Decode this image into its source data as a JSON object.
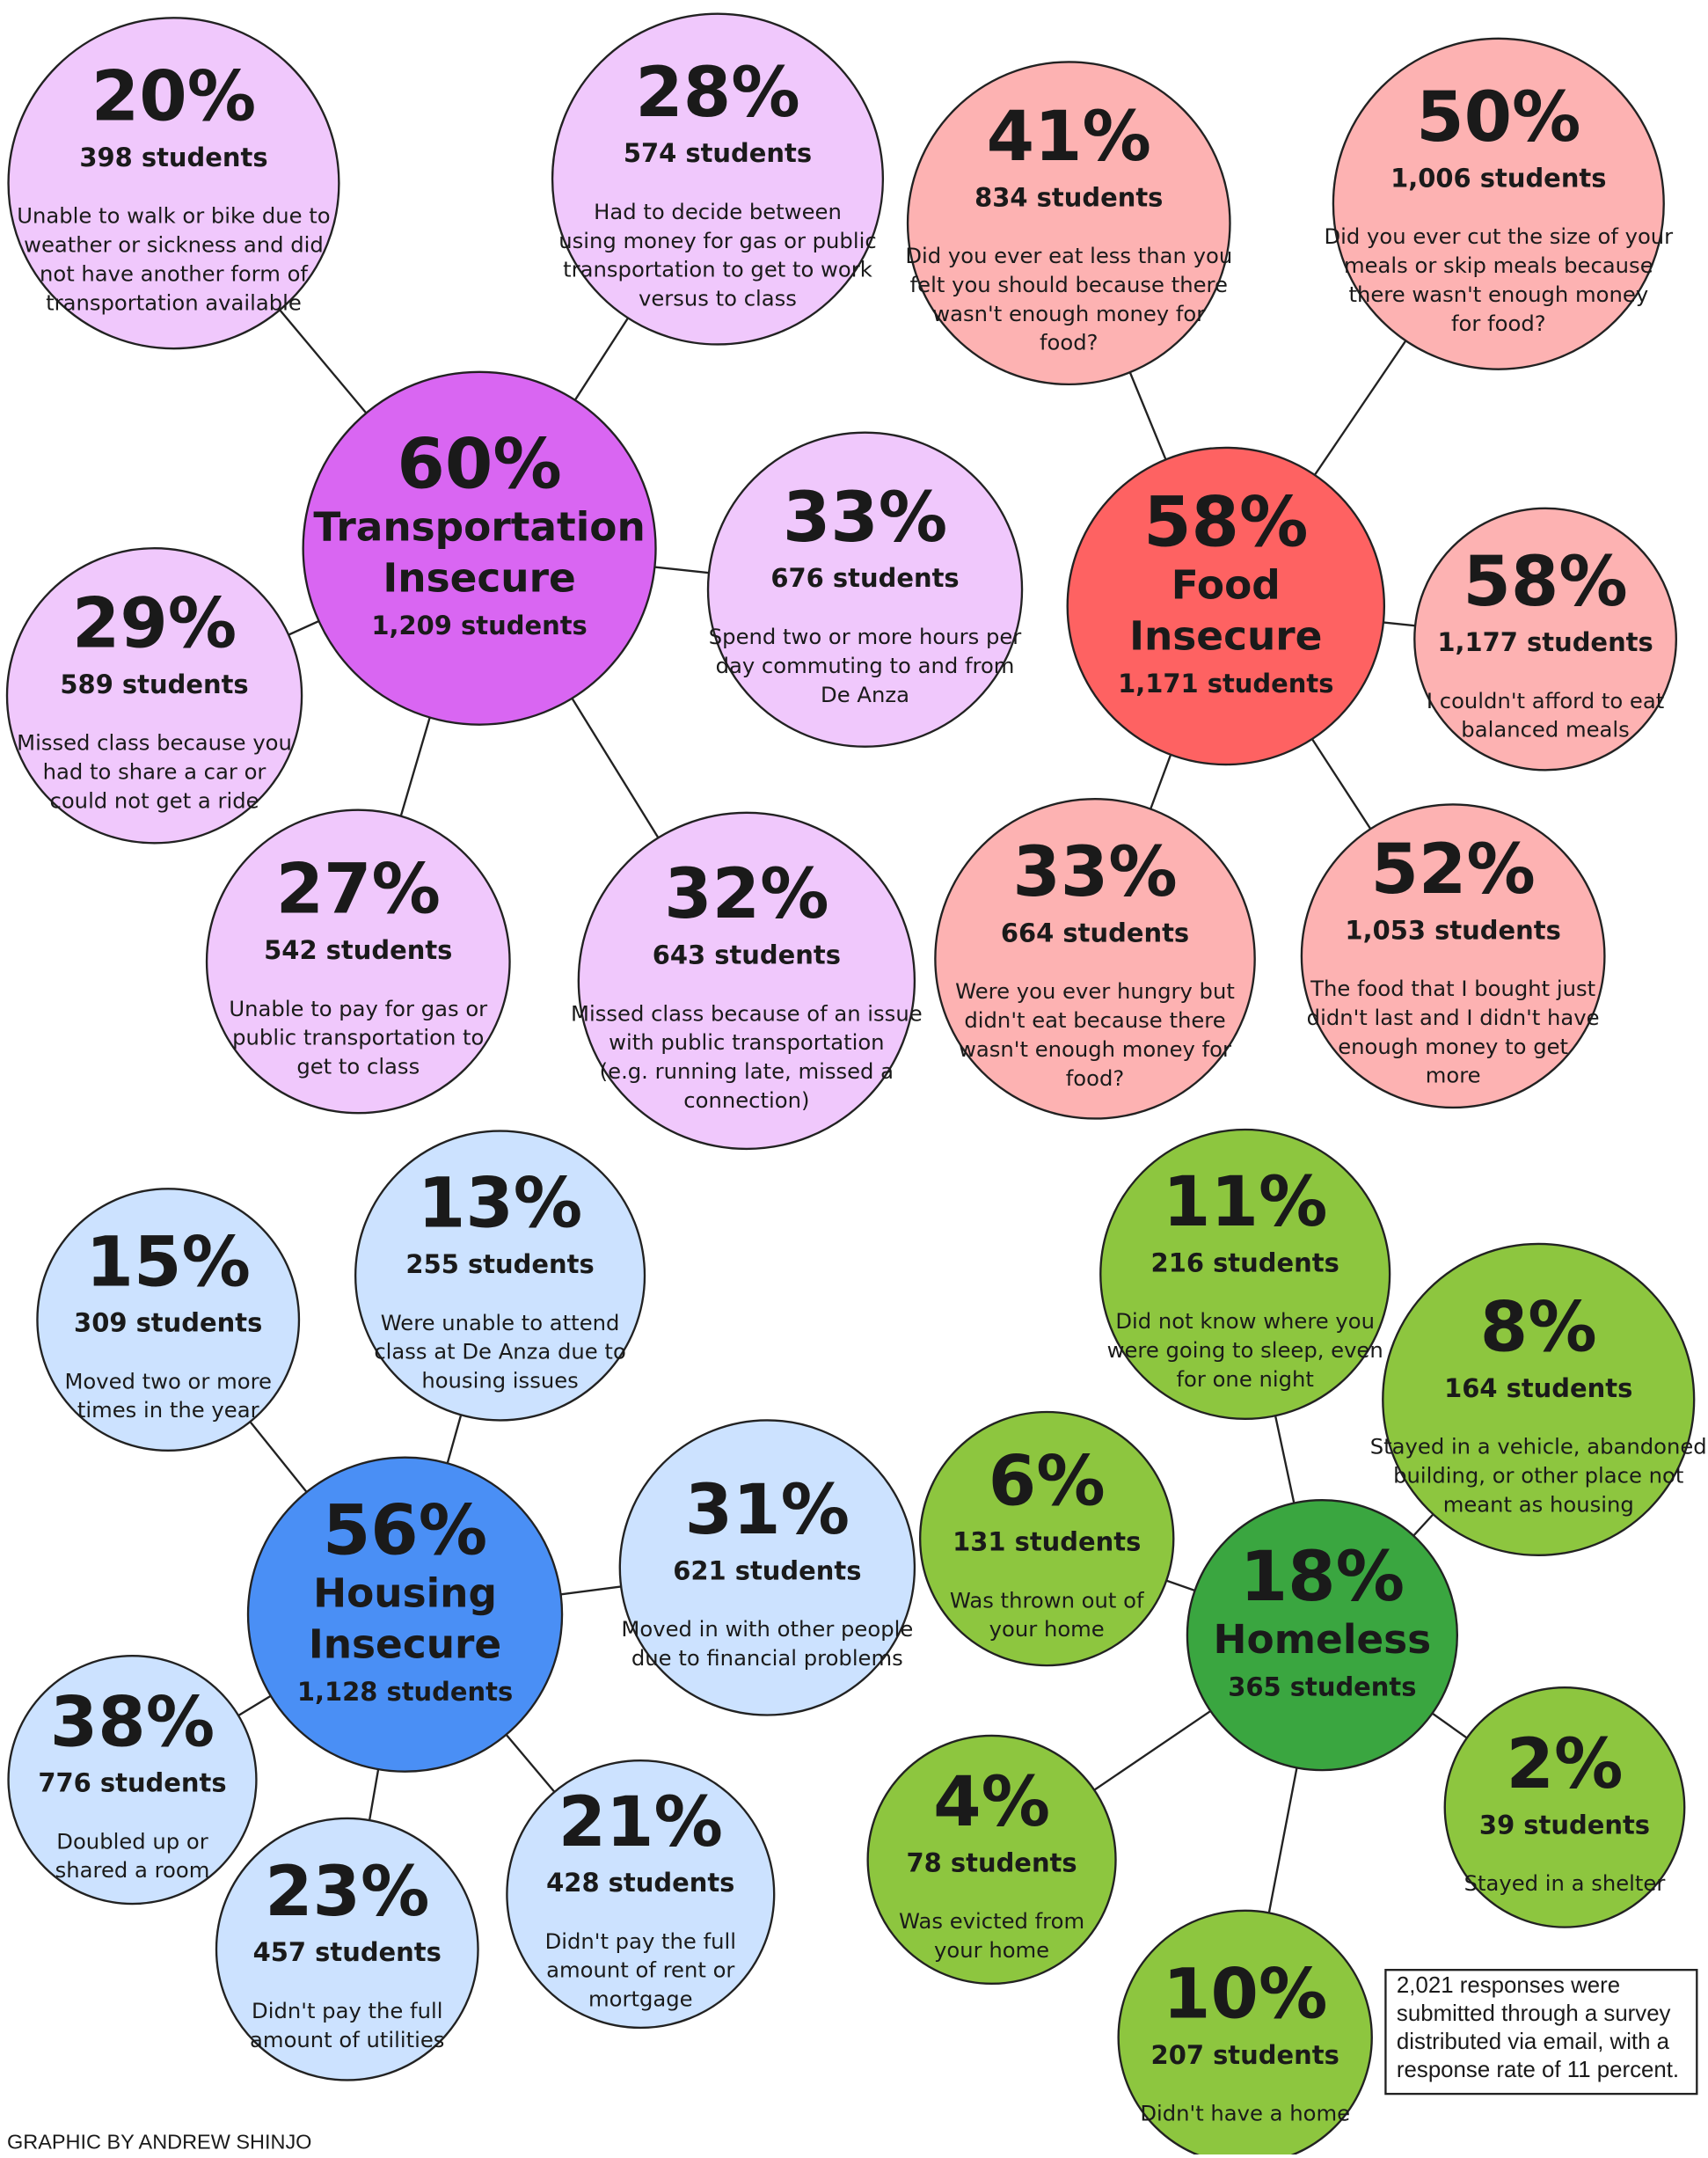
{
  "groups": [
    {
      "hub": {
        "percent": "60%",
        "title": [
          "Transportation",
          "Insecure"
        ],
        "students": "1,209 students"
      },
      "items": [
        {
          "percent": "20%",
          "students": "398 students",
          "text": [
            "Unable to walk or bike due to",
            "weather or sickness and did",
            "not have another form of",
            "transportation available"
          ]
        },
        {
          "percent": "28%",
          "students": "574 students",
          "text": [
            "Had to decide between",
            "using money for gas or public",
            "transportation to get to work",
            "versus to class"
          ]
        },
        {
          "percent": "33%",
          "students": "676 students",
          "text": [
            "Spend two or more hours per",
            "day commuting to and from",
            "De Anza"
          ]
        },
        {
          "percent": "29%",
          "students": "589 students",
          "text": [
            "Missed class because you",
            "had to share a car or",
            "could not get a ride"
          ]
        },
        {
          "percent": "27%",
          "students": "542 students",
          "text": [
            "Unable to pay for gas or",
            "public transportation to",
            "get to class"
          ]
        },
        {
          "percent": "32%",
          "students": "643 students",
          "text": [
            "Missed class because of an issue",
            "with public transportation",
            "(e.g. running late, missed a",
            "connection)"
          ]
        }
      ]
    },
    {
      "hub": {
        "percent": "58%",
        "title": [
          "Food",
          "Insecure"
        ],
        "students": "1,171 students"
      },
      "items": [
        {
          "percent": "41%",
          "students": "834 students",
          "text": [
            "Did you ever eat less than you",
            "felt you should because there",
            "wasn't enough money for",
            "food?"
          ]
        },
        {
          "percent": "50%",
          "students": "1,006 students",
          "text": [
            "Did you ever cut the size of your",
            "meals or skip meals because",
            "there wasn't enough money",
            "for food?"
          ]
        },
        {
          "percent": "58%",
          "students": "1,177 students",
          "text": [
            "I couldn't afford to eat",
            "balanced meals"
          ]
        },
        {
          "percent": "33%",
          "students": "664 students",
          "text": [
            "Were you ever hungry but",
            "didn't eat because there",
            "wasn't enough money for",
            "food?"
          ]
        },
        {
          "percent": "52%",
          "students": "1,053 students",
          "text": [
            "The food that I bought just",
            "didn't last and I didn't have",
            "enough money to get",
            "more"
          ]
        }
      ]
    },
    {
      "hub": {
        "percent": "56%",
        "title": [
          "Housing",
          "Insecure"
        ],
        "students": "1,128 students"
      },
      "items": [
        {
          "percent": "15%",
          "students": "309 students",
          "text": [
            "Moved two or more",
            "times in the year"
          ]
        },
        {
          "percent": "13%",
          "students": "255 students",
          "text": [
            "Were unable to attend",
            "class at De Anza due to",
            "housing issues"
          ]
        },
        {
          "percent": "31%",
          "students": "621 students",
          "text": [
            "Moved in with other people",
            "due to financial problems"
          ]
        },
        {
          "percent": "38%",
          "students": "776 students",
          "text": [
            "Doubled up or",
            "shared a room"
          ]
        },
        {
          "percent": "23%",
          "students": "457 students",
          "text": [
            "Didn't pay the full",
            "amount of utilities"
          ]
        },
        {
          "percent": "21%",
          "students": "428 students",
          "text": [
            "Didn't pay the full",
            "amount of rent or",
            "mortgage"
          ]
        }
      ]
    },
    {
      "hub": {
        "percent": "18%",
        "title": [
          "Homeless"
        ],
        "students": "365 students"
      },
      "items": [
        {
          "percent": "11%",
          "students": "216 students",
          "text": [
            "Did not know where you",
            "were going to sleep, even",
            "for one night"
          ]
        },
        {
          "percent": "8%",
          "students": "164 students",
          "text": [
            "Stayed in a vehicle, abandoned",
            "building, or other place not",
            "meant as housing"
          ]
        },
        {
          "percent": "6%",
          "students": "131 students",
          "text": [
            "Was thrown out of",
            "your home"
          ]
        },
        {
          "percent": "4%",
          "students": "78 students",
          "text": [
            "Was evicted from",
            "your home"
          ]
        },
        {
          "percent": "10%",
          "students": "207 students",
          "text": [
            "Didn't have a home"
          ]
        },
        {
          "percent": "2%",
          "students": "39 students",
          "text": [
            "Stayed in a shelter"
          ]
        }
      ]
    }
  ],
  "note": [
    "2,021 responses were",
    "submitted through a survey",
    "distributed via email, with a",
    "response rate of 11 percent."
  ],
  "credit": "GRAPHIC BY ANDREW SHINJO"
}
